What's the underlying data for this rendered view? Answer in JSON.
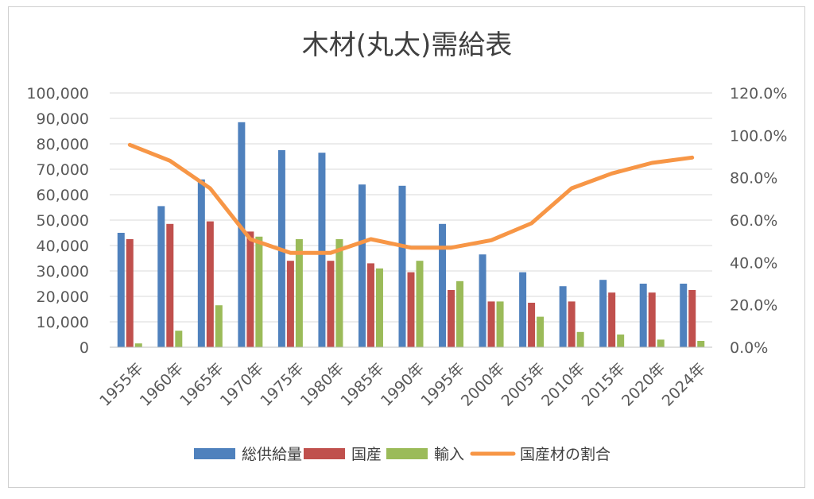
{
  "chart_data": {
    "type": "bar",
    "title": "木材(丸太)需給表",
    "categories": [
      "1955年",
      "1960年",
      "1965年",
      "1970年",
      "1975年",
      "1980年",
      "1985年",
      "1990年",
      "1995年",
      "2000年",
      "2005年",
      "2010年",
      "2015年",
      "2020年",
      "2024年"
    ],
    "series": [
      {
        "name": "総供給量",
        "type": "bar",
        "axis": "left",
        "color": "#4f81bd",
        "values": [
          45000,
          55500,
          66000,
          88500,
          77500,
          76500,
          64000,
          63500,
          48500,
          36500,
          29500,
          24000,
          26500,
          25000,
          25000
        ]
      },
      {
        "name": "国産",
        "type": "bar",
        "axis": "left",
        "color": "#c0504d",
        "values": [
          42500,
          48500,
          49500,
          45500,
          34000,
          34000,
          33000,
          29500,
          22500,
          18000,
          17500,
          18000,
          21500,
          21500,
          22500
        ]
      },
      {
        "name": "輸入",
        "type": "bar",
        "axis": "left",
        "color": "#9bbb59",
        "values": [
          1500,
          6500,
          16500,
          43500,
          42500,
          42500,
          31000,
          34000,
          26000,
          18000,
          12000,
          6000,
          5000,
          3000,
          2500
        ]
      },
      {
        "name": "国産材の割合",
        "type": "line",
        "axis": "right",
        "color": "#f79646",
        "values": [
          95.5,
          88.0,
          75.0,
          51.0,
          44.5,
          44.5,
          51.0,
          47.0,
          47.0,
          50.5,
          58.5,
          75.0,
          82.0,
          87.0,
          89.5
        ]
      }
    ],
    "y_left": {
      "min": 0,
      "max": 100000,
      "step": 10000,
      "tick_labels": [
        "0",
        "10,000",
        "20,000",
        "30,000",
        "40,000",
        "50,000",
        "60,000",
        "70,000",
        "80,000",
        "90,000",
        "100,000"
      ]
    },
    "y_right": {
      "min": 0,
      "max": 120,
      "step": 20,
      "tick_labels": [
        "0.0%",
        "20.0%",
        "40.0%",
        "60.0%",
        "80.0%",
        "100.0%",
        "120.0%"
      ]
    },
    "grid": true,
    "legend_position": "bottom"
  }
}
